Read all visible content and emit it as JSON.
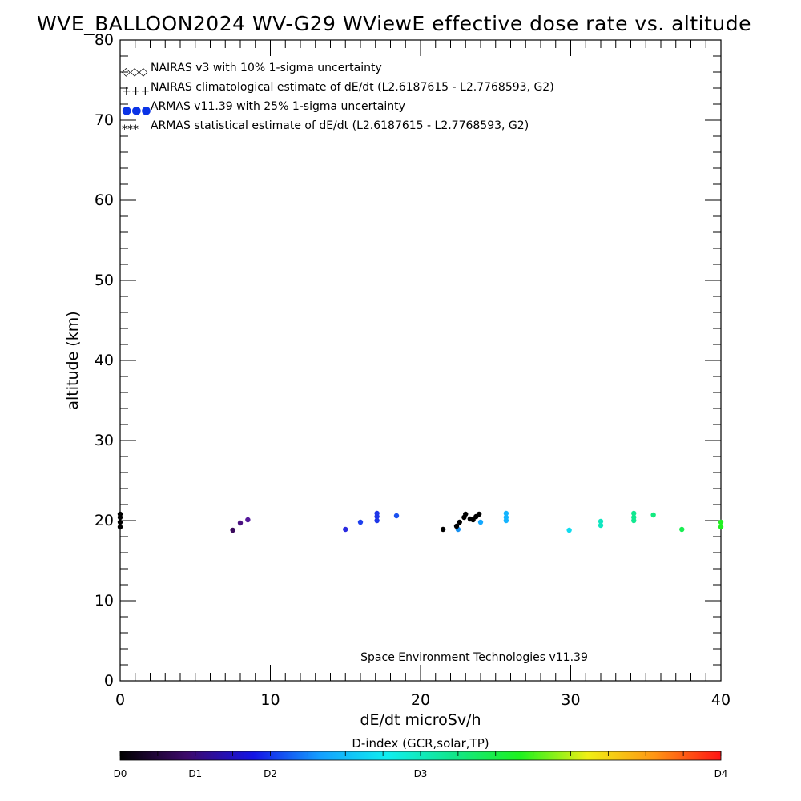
{
  "chart_data": {
    "type": "scatter",
    "title": "WVE_BALLOON2024 WV-G29 WViewE effective dose rate vs. altitude",
    "xlabel": "dE/dt microSv/h",
    "ylabel": "altitude (km)",
    "xlim": [
      0,
      40
    ],
    "ylim": [
      0,
      80
    ],
    "x_ticks": [
      0,
      10,
      20,
      30,
      40
    ],
    "y_ticks": [
      0,
      10,
      20,
      30,
      40,
      50,
      60,
      70,
      80
    ],
    "grid": false,
    "legend_position": "top-left",
    "legend": [
      {
        "symbol": "◇◇◇",
        "color": "#000000",
        "label": "NAIRAS v3 with 10% 1-sigma uncertainty"
      },
      {
        "symbol": "+++",
        "color": "#000000",
        "label": "NAIRAS climatological estimate of dE/dt (L2.6187615 - L2.7768593, G2)"
      },
      {
        "symbol": "●●●",
        "color": "#0a33e6",
        "label": "ARMAS v11.39 with 25% 1-sigma uncertainty"
      },
      {
        "symbol": "***",
        "color": "#000000",
        "label": "ARMAS statistical estimate of dE/dt (L2.6187615 - L2.7768593, G2)"
      }
    ],
    "credit": "Space Environment Technologies v11.39",
    "colorbar": {
      "title": "D-index (GCR,solar,TP)",
      "labels": [
        {
          "text": "D0",
          "pos": 0
        },
        {
          "text": "D1",
          "pos": 0.125
        },
        {
          "text": "D2",
          "pos": 0.25
        },
        {
          "text": "D3",
          "pos": 0.5
        },
        {
          "text": "D4",
          "pos": 1
        }
      ],
      "stops": [
        "#000000",
        "#3d0a6b",
        "#1414e6",
        "#14a0ff",
        "#10eef0",
        "#12e68a",
        "#1ef21e",
        "#f0f014",
        "#ff9614",
        "#ff1414"
      ]
    },
    "series": [
      {
        "name": "ARMAS v11.39 with 25% 1-sigma uncertainty",
        "points": [
          {
            "x": 0.0,
            "y": 19.2,
            "color": "#000000"
          },
          {
            "x": 0.0,
            "y": 19.8,
            "color": "#000000"
          },
          {
            "x": 0.0,
            "y": 20.4,
            "color": "#000000"
          },
          {
            "x": 0.0,
            "y": 20.8,
            "color": "#000000"
          },
          {
            "x": 7.5,
            "y": 18.8,
            "color": "#3a0a5c"
          },
          {
            "x": 8.0,
            "y": 19.7,
            "color": "#4a1080"
          },
          {
            "x": 8.5,
            "y": 20.1,
            "color": "#55189a"
          },
          {
            "x": 15.0,
            "y": 18.9,
            "color": "#2a2ae0"
          },
          {
            "x": 16.0,
            "y": 19.8,
            "color": "#1e40ee"
          },
          {
            "x": 17.1,
            "y": 20.0,
            "color": "#1e36e8"
          },
          {
            "x": 17.1,
            "y": 20.5,
            "color": "#1e36e8"
          },
          {
            "x": 17.1,
            "y": 20.9,
            "color": "#1e36e8"
          },
          {
            "x": 18.4,
            "y": 20.6,
            "color": "#1a50f0"
          },
          {
            "x": 22.5,
            "y": 18.9,
            "color": "#1890f0"
          },
          {
            "x": 24.0,
            "y": 19.8,
            "color": "#14a8ff"
          },
          {
            "x": 25.7,
            "y": 20.0,
            "color": "#14b4ff"
          },
          {
            "x": 25.7,
            "y": 20.4,
            "color": "#14b4ff"
          },
          {
            "x": 25.7,
            "y": 20.9,
            "color": "#14b4ff"
          },
          {
            "x": 29.9,
            "y": 18.8,
            "color": "#10dcf0"
          },
          {
            "x": 32.0,
            "y": 19.4,
            "color": "#10e6c0"
          },
          {
            "x": 32.0,
            "y": 19.9,
            "color": "#10e6c0"
          },
          {
            "x": 34.2,
            "y": 20.0,
            "color": "#12e890"
          },
          {
            "x": 34.2,
            "y": 20.4,
            "color": "#12e890"
          },
          {
            "x": 34.2,
            "y": 20.9,
            "color": "#12e890"
          },
          {
            "x": 35.5,
            "y": 20.7,
            "color": "#14ea80"
          },
          {
            "x": 37.4,
            "y": 18.9,
            "color": "#18ee50"
          },
          {
            "x": 40.0,
            "y": 19.2,
            "color": "#20f020"
          },
          {
            "x": 40.0,
            "y": 19.8,
            "color": "#20f020"
          }
        ]
      },
      {
        "name": "ARMAS statistical estimate of dE/dt (L2.6187615 - L2.7768593, G2)",
        "points": [
          {
            "x": 21.5,
            "y": 18.9,
            "color": "#000000"
          },
          {
            "x": 22.4,
            "y": 19.3,
            "color": "#000000"
          },
          {
            "x": 22.6,
            "y": 19.8,
            "color": "#000000"
          },
          {
            "x": 22.9,
            "y": 20.4,
            "color": "#000000"
          },
          {
            "x": 23.0,
            "y": 20.8,
            "color": "#000000"
          },
          {
            "x": 23.3,
            "y": 20.2,
            "color": "#000000"
          },
          {
            "x": 23.5,
            "y": 20.1,
            "color": "#000000"
          },
          {
            "x": 23.7,
            "y": 20.5,
            "color": "#000000"
          },
          {
            "x": 23.9,
            "y": 20.8,
            "color": "#000000"
          }
        ]
      }
    ]
  }
}
